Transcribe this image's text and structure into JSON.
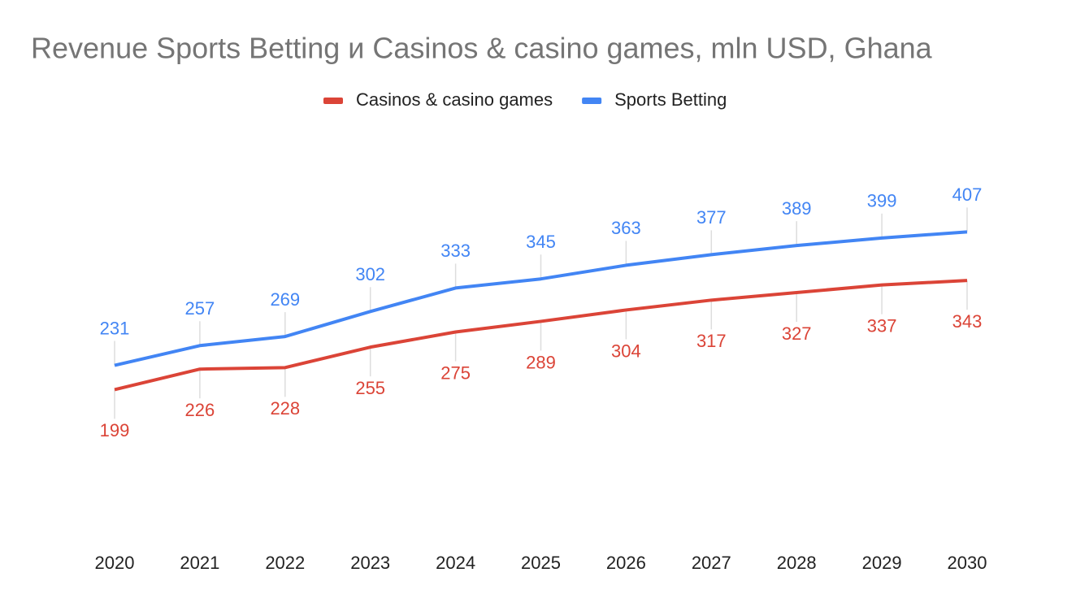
{
  "chart_data": {
    "type": "line",
    "title": "Revenue Sports Betting и Casinos & casino games, mln USD, Ghana",
    "categories": [
      "2020",
      "2021",
      "2022",
      "2023",
      "2024",
      "2025",
      "2026",
      "2027",
      "2028",
      "2029",
      "2030"
    ],
    "series": [
      {
        "name": "Casinos & casino games",
        "color": "#db4437",
        "values": [
          199,
          226,
          228,
          255,
          275,
          289,
          304,
          317,
          327,
          337,
          343
        ]
      },
      {
        "name": "Sports Betting",
        "color": "#4285f4",
        "values": [
          231,
          257,
          269,
          302,
          333,
          345,
          363,
          377,
          389,
          399,
          407
        ]
      }
    ],
    "ylim": [
      0,
      550
    ],
    "legend": "top",
    "data_labels": true
  }
}
